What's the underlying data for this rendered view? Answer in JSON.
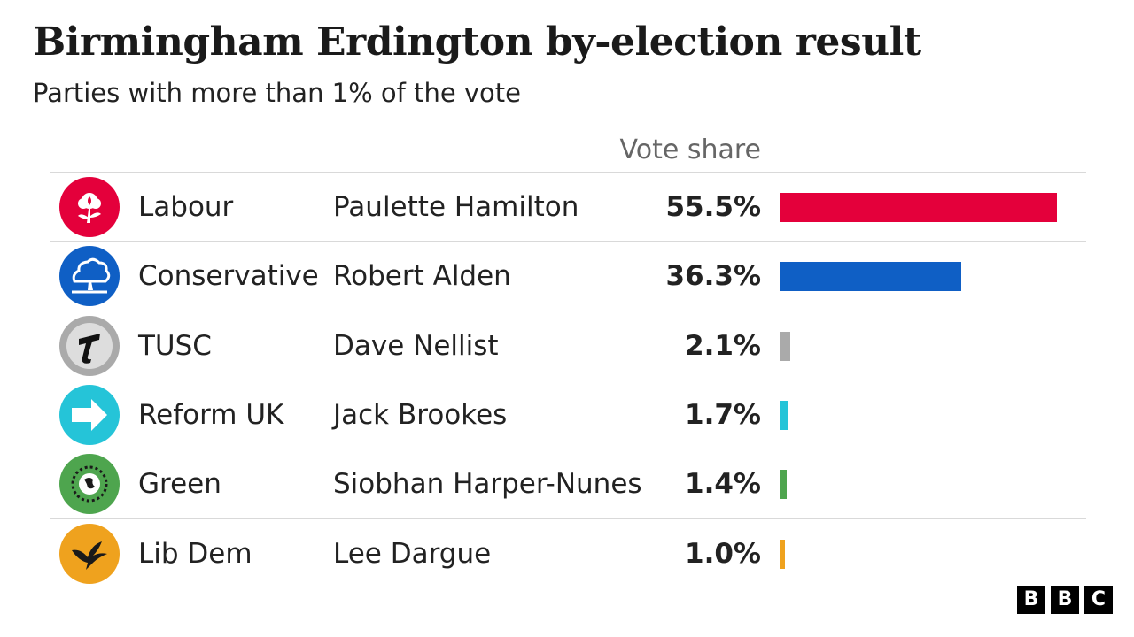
{
  "title": "Birmingham Erdington by-election result",
  "subtitle": "Parties with more than 1% of the vote",
  "column_header": "Vote share",
  "logo_text": [
    "B",
    "B",
    "C"
  ],
  "chart_data": {
    "type": "bar",
    "orientation": "horizontal",
    "value_label": "Vote share",
    "unit": "%",
    "xlim": [
      0,
      55.5
    ],
    "grid": false,
    "legend": "none",
    "rows": [
      {
        "party": "Labour",
        "candidate": "Paulette Hamilton",
        "value": 55.5,
        "label": "55.5%",
        "color": "#e4003b",
        "icon": "labour-rose-icon"
      },
      {
        "party": "Conservative",
        "candidate": "Robert Alden",
        "value": 36.3,
        "label": "36.3%",
        "color": "#0f5fc5",
        "icon": "conservative-tree-icon"
      },
      {
        "party": "TUSC",
        "candidate": "Dave Nellist",
        "value": 2.1,
        "label": "2.1%",
        "color": "#aaaaaa",
        "icon": "tusc-t-icon"
      },
      {
        "party": "Reform UK",
        "candidate": "Jack Brookes",
        "value": 1.7,
        "label": "1.7%",
        "color": "#25c4d8",
        "icon": "reform-arrow-icon"
      },
      {
        "party": "Green",
        "candidate": "Siobhan Harper-Nunes",
        "value": 1.4,
        "label": "1.4%",
        "color": "#4ea54e",
        "icon": "green-globe-icon"
      },
      {
        "party": "Lib Dem",
        "candidate": "Lee Dargue",
        "value": 1.0,
        "label": "1.0%",
        "color": "#efa21e",
        "icon": "libdem-bird-icon"
      }
    ]
  }
}
